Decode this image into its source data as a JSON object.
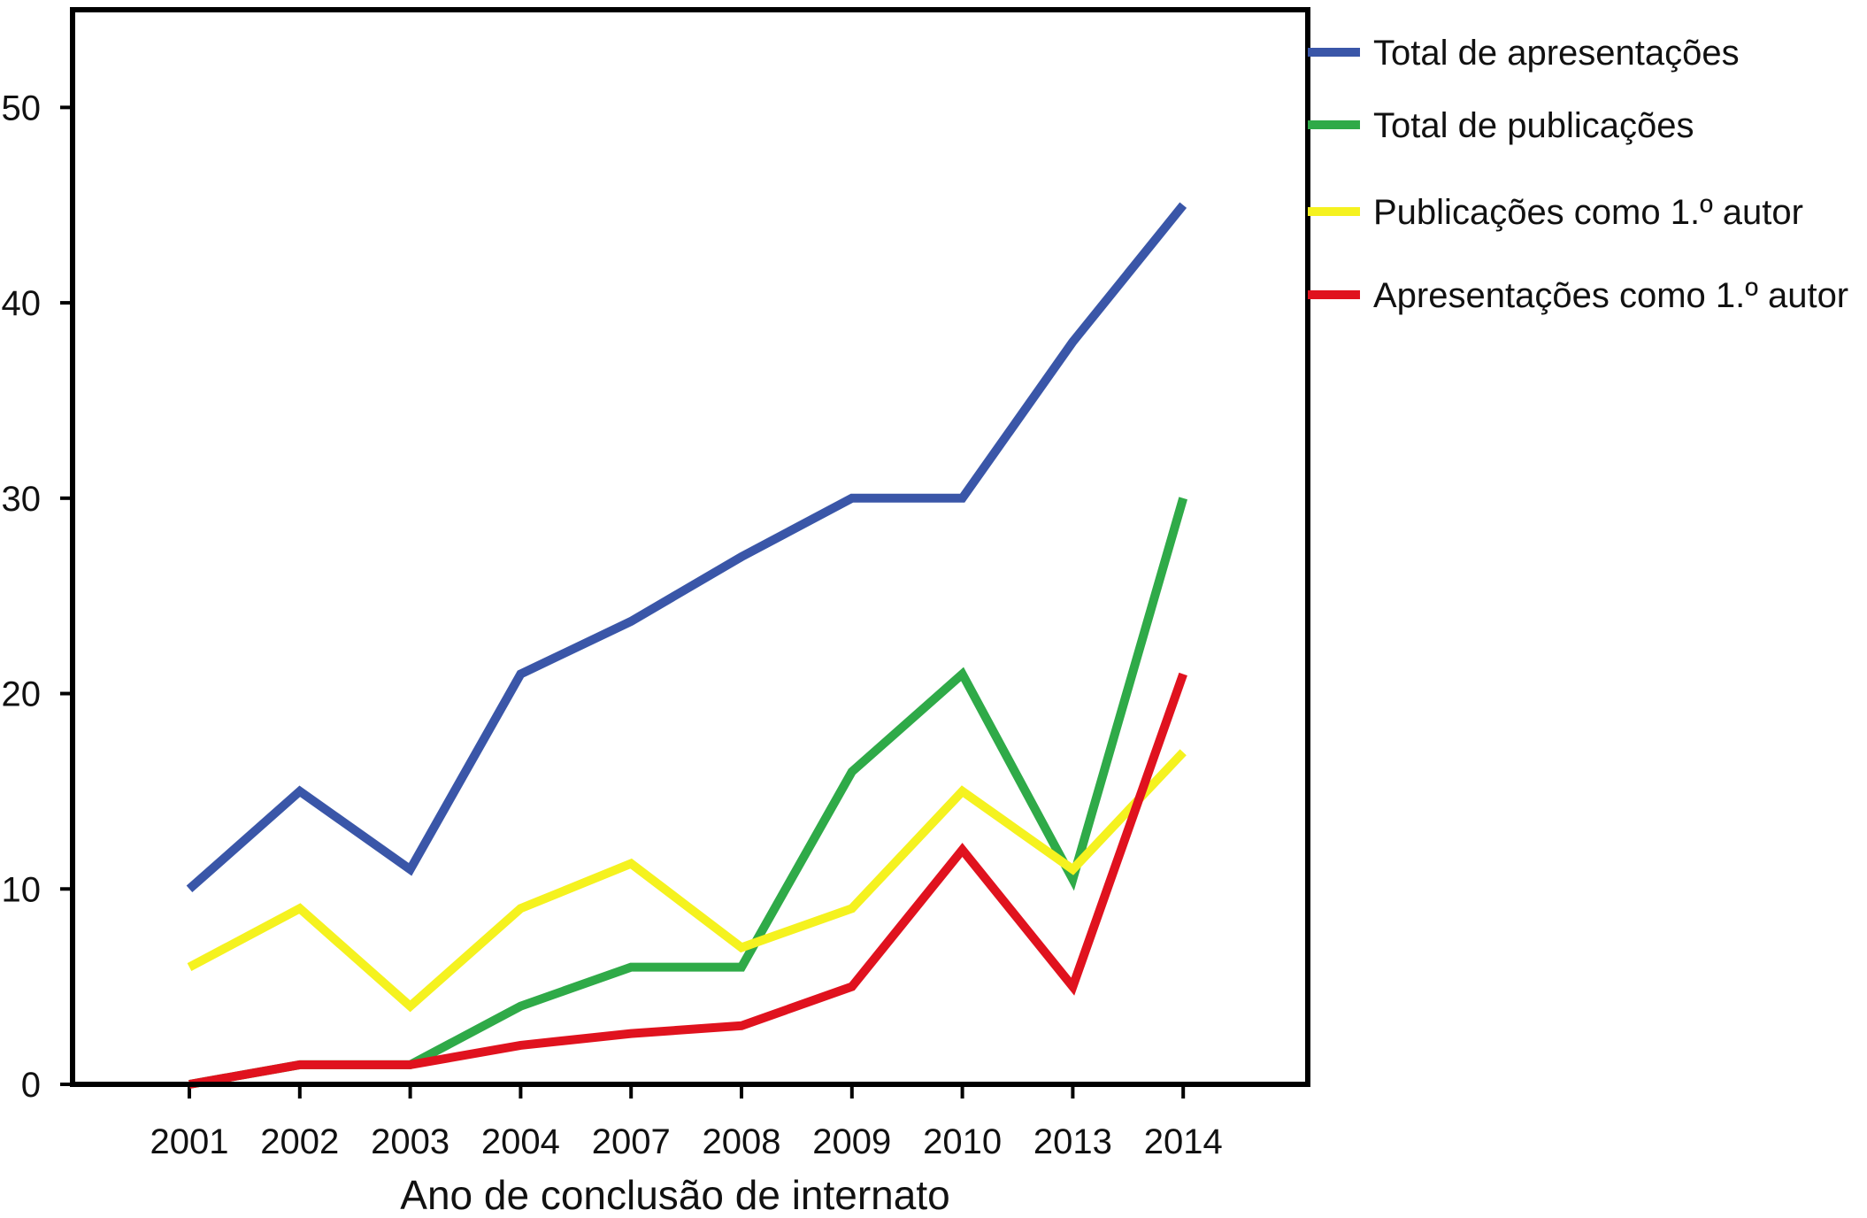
{
  "chart_data": {
    "type": "line",
    "title": "",
    "xlabel": "Ano de conclusão de internato",
    "ylabel": "",
    "categories": [
      "2001",
      "2002",
      "2003",
      "2004",
      "2007",
      "2008",
      "2009",
      "2010",
      "2013",
      "2014"
    ],
    "ylim": [
      0,
      55
    ],
    "yticks": [
      0,
      10,
      20,
      30,
      40,
      50
    ],
    "grid": false,
    "legend_position": "right",
    "series": [
      {
        "name": "Total de apresentações",
        "color": "#3a56a8",
        "values": [
          10,
          15,
          11,
          21,
          23.7,
          27,
          30,
          30,
          38,
          45
        ]
      },
      {
        "name": "Total de publicações",
        "color": "#2faa48",
        "values": [
          0,
          1,
          1,
          4,
          6,
          6,
          16,
          21,
          10.5,
          30
        ]
      },
      {
        "name": "Publicações como 1.º autor",
        "color": "#f5f21f",
        "values": [
          6,
          9,
          4,
          9,
          11.3,
          7,
          9,
          15,
          11,
          17
        ]
      },
      {
        "name": "Apresentações como 1.º autor",
        "color": "#e0121e",
        "values": [
          0,
          1,
          1,
          2,
          2.6,
          3,
          5,
          12,
          5,
          21
        ]
      }
    ]
  }
}
